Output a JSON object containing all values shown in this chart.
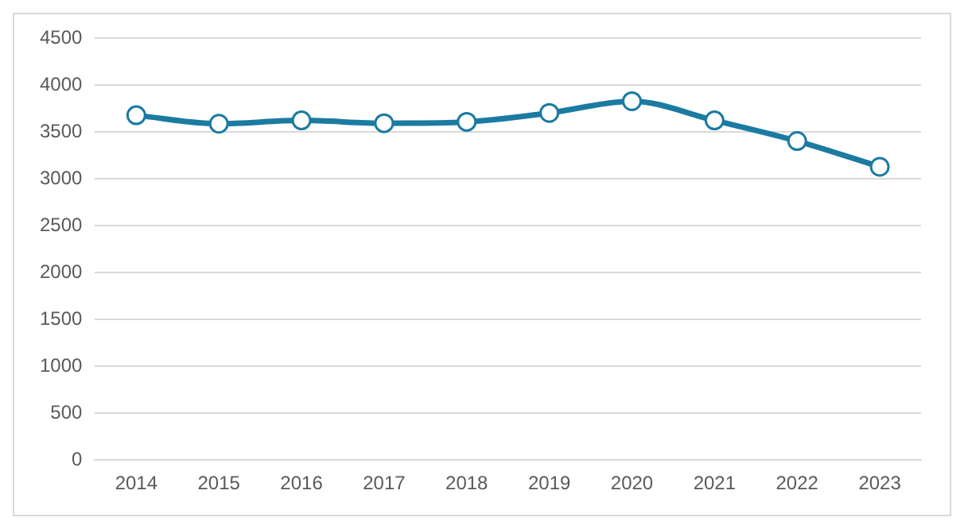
{
  "chart_data": {
    "type": "line",
    "categories": [
      "2014",
      "2015",
      "2016",
      "2017",
      "2018",
      "2019",
      "2020",
      "2021",
      "2022",
      "2023"
    ],
    "series": [
      {
        "color": "#1b7ba1",
        "values": [
          3680,
          3590,
          3625,
          3595,
          3610,
          3705,
          3830,
          3625,
          3405,
          3130
        ]
      }
    ],
    "ylim": [
      0,
      4500
    ],
    "yticks": [
      0,
      500,
      1000,
      1500,
      2000,
      2500,
      3000,
      3500,
      4000,
      4500
    ],
    "grid": "y",
    "legend": false,
    "marker": "circle",
    "line_style": "solid"
  }
}
